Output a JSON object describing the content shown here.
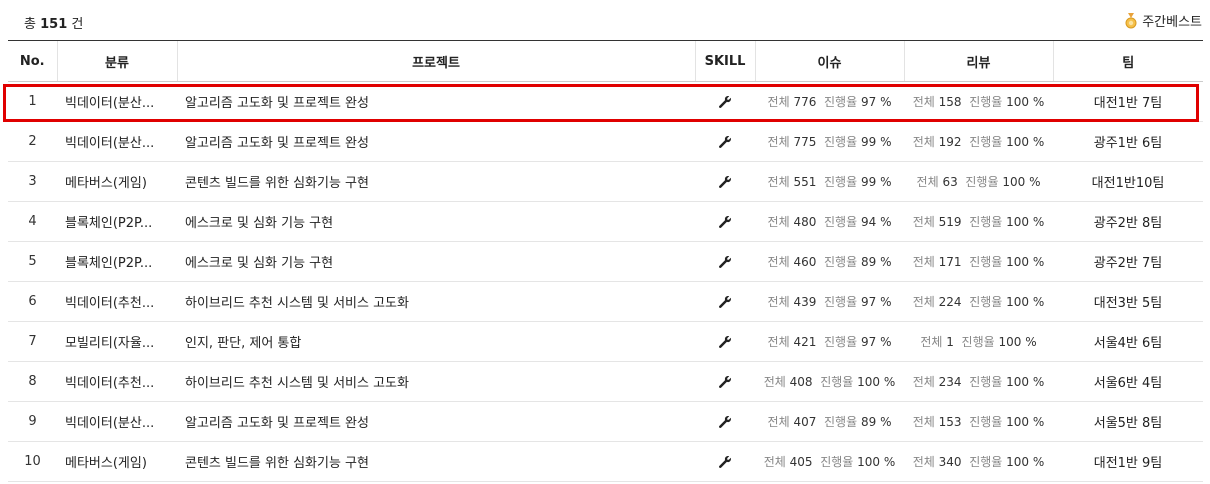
{
  "header": {
    "total_prefix": "총",
    "total_count": "151",
    "total_suffix": "건",
    "weekly_best": "주간베스트",
    "weekly_icon": "medal-icon"
  },
  "columns": {
    "no": "No.",
    "category": "분류",
    "project": "프로젝트",
    "skill": "SKILL",
    "issue": "이슈",
    "review": "리뷰",
    "team": "팀"
  },
  "labels": {
    "total": "전체",
    "progress": "진행율",
    "percent": "%"
  },
  "skill_icon": "wrench-icon",
  "highlight_color": "#e00000",
  "rows": [
    {
      "no": "1",
      "category": "빅데이터(분산...",
      "project": "알고리즘 고도화 및 프로젝트 완성",
      "issue_total": "776",
      "issue_progress": "97",
      "review_total": "158",
      "review_progress": "100",
      "team": "대전1반 7팀"
    },
    {
      "no": "2",
      "category": "빅데이터(분산...",
      "project": "알고리즘 고도화 및 프로젝트 완성",
      "issue_total": "775",
      "issue_progress": "99",
      "review_total": "192",
      "review_progress": "100",
      "team": "광주1반 6팀"
    },
    {
      "no": "3",
      "category": "메타버스(게임)",
      "project": "콘텐츠 빌드를 위한 심화기능 구현",
      "issue_total": "551",
      "issue_progress": "99",
      "review_total": "63",
      "review_progress": "100",
      "team": "대전1반10팀"
    },
    {
      "no": "4",
      "category": "블록체인(P2P...",
      "project": "에스크로 및 심화 기능 구현",
      "issue_total": "480",
      "issue_progress": "94",
      "review_total": "519",
      "review_progress": "100",
      "team": "광주2반 8팀"
    },
    {
      "no": "5",
      "category": "블록체인(P2P...",
      "project": "에스크로 및 심화 기능 구현",
      "issue_total": "460",
      "issue_progress": "89",
      "review_total": "171",
      "review_progress": "100",
      "team": "광주2반 7팀"
    },
    {
      "no": "6",
      "category": "빅데이터(추천...",
      "project": "하이브리드 추천 시스템 및 서비스 고도화",
      "issue_total": "439",
      "issue_progress": "97",
      "review_total": "224",
      "review_progress": "100",
      "team": "대전3반 5팀"
    },
    {
      "no": "7",
      "category": "모빌리티(자율...",
      "project": "인지, 판단, 제어 통합",
      "issue_total": "421",
      "issue_progress": "97",
      "review_total": "1",
      "review_progress": "100",
      "team": "서울4반 6팀"
    },
    {
      "no": "8",
      "category": "빅데이터(추천...",
      "project": "하이브리드 추천 시스템 및 서비스 고도화",
      "issue_total": "408",
      "issue_progress": "100",
      "review_total": "234",
      "review_progress": "100",
      "team": "서울6반 4팀"
    },
    {
      "no": "9",
      "category": "빅데이터(분산...",
      "project": "알고리즘 고도화 및 프로젝트 완성",
      "issue_total": "407",
      "issue_progress": "89",
      "review_total": "153",
      "review_progress": "100",
      "team": "서울5반 8팀"
    },
    {
      "no": "10",
      "category": "메타버스(게임)",
      "project": "콘텐츠 빌드를 위한 심화기능 구현",
      "issue_total": "405",
      "issue_progress": "100",
      "review_total": "340",
      "review_progress": "100",
      "team": "대전1반 9팀"
    }
  ]
}
